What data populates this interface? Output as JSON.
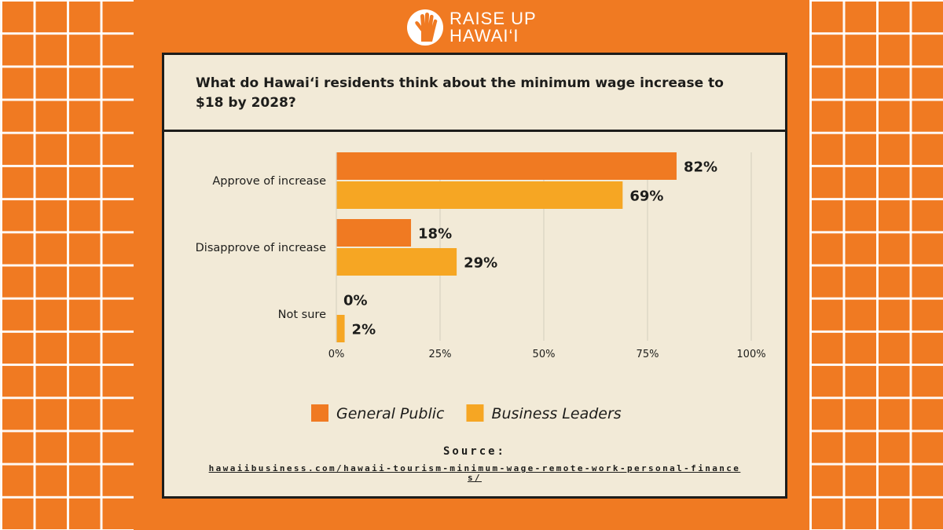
{
  "brand": {
    "line1": "RAISE UP",
    "line2": "HAWAI‘I"
  },
  "colors": {
    "background": "#f07a22",
    "card": "#f2ead7",
    "general_public": "#f07a22",
    "business_leaders": "#f6a623",
    "gridline": "#d9d2c2",
    "text": "#1d1d1b"
  },
  "chart_data": {
    "type": "bar",
    "orientation": "horizontal",
    "title": "What do Hawai‘i residents think about the minimum wage increase to $18 by 2028?",
    "categories": [
      "Approve of increase",
      "Disapprove of increase",
      "Not sure"
    ],
    "series": [
      {
        "name": "General Public",
        "values": [
          82,
          18,
          0
        ],
        "color": "#f07a22"
      },
      {
        "name": "Business Leaders",
        "values": [
          69,
          29,
          2
        ],
        "color": "#f6a623"
      }
    ],
    "value_suffix": "%",
    "xlim": [
      0,
      100
    ],
    "xticks": [
      0,
      25,
      50,
      75,
      100
    ],
    "xtick_labels": [
      "0%",
      "25%",
      "50%",
      "75%",
      "100%"
    ],
    "grid": "vertical",
    "legend": "bottom-center"
  },
  "source": {
    "label": "Source:",
    "url": "hawaiibusiness.com/hawaii-tourism-minimum-wage-remote-work-personal-finances/"
  }
}
